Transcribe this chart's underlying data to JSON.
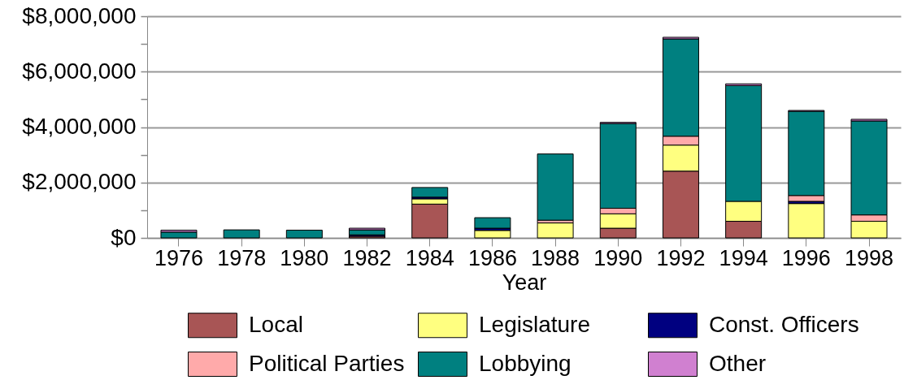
{
  "chart_data": {
    "type": "bar",
    "stacked": true,
    "xlabel": "Year",
    "categories": [
      "1976",
      "1978",
      "1980",
      "1982",
      "1984",
      "1986",
      "1988",
      "1990",
      "1992",
      "1994",
      "1996",
      "1998"
    ],
    "series": [
      {
        "name": "Local",
        "color": "#a85555",
        "values": [
          0,
          0,
          0,
          60000,
          1220000,
          0,
          0,
          350000,
          2410000,
          600000,
          0,
          0
        ]
      },
      {
        "name": "Legislature",
        "color": "#ffff80",
        "values": [
          0,
          0,
          0,
          0,
          190000,
          270000,
          540000,
          520000,
          940000,
          720000,
          1240000,
          600000
        ]
      },
      {
        "name": "Const. Officers",
        "color": "#000080",
        "values": [
          0,
          0,
          0,
          50000,
          60000,
          80000,
          null,
          0,
          null,
          null,
          80000,
          0
        ]
      },
      {
        "name": "Political Parties",
        "color": "#ffaaaa",
        "values": [
          0,
          0,
          0,
          0,
          0,
          0,
          100000,
          200000,
          320000,
          0,
          210000,
          230000
        ]
      },
      {
        "name": "Lobbying",
        "color": "#008080",
        "values": [
          210000,
          290000,
          280000,
          180000,
          350000,
          380000,
          2390000,
          3060000,
          3510000,
          4180000,
          3040000,
          3390000
        ]
      },
      {
        "name": "Other",
        "color": "#d080d0",
        "values": [
          70000,
          0,
          0,
          60000,
          0,
          0,
          0,
          40000,
          60000,
          60000,
          30000,
          60000
        ]
      }
    ],
    "ylim": [
      0,
      8000000
    ],
    "yticks": [
      {
        "value": 0,
        "label": "$0"
      },
      {
        "value": 1000000,
        "label": null
      },
      {
        "value": 2000000,
        "label": "$2,000,000"
      },
      {
        "value": 3000000,
        "label": null
      },
      {
        "value": 4000000,
        "label": "$4,000,000"
      },
      {
        "value": 5000000,
        "label": null
      },
      {
        "value": 6000000,
        "label": "$6,000,000"
      },
      {
        "value": 7000000,
        "label": null
      },
      {
        "value": 8000000,
        "label": "$8,000,000"
      }
    ],
    "grid": "y",
    "legend": "bottom"
  }
}
